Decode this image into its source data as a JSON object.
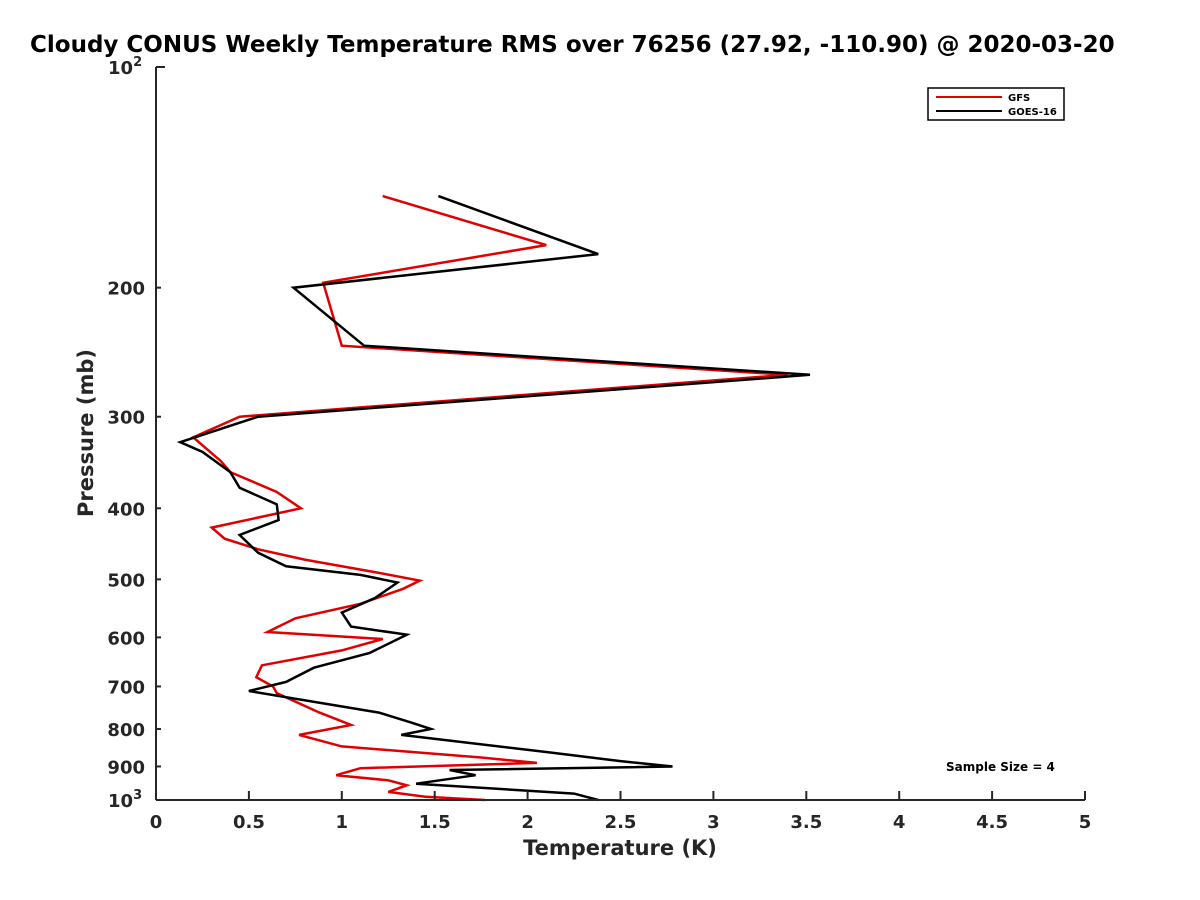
{
  "chart_data": {
    "type": "line",
    "title": "Cloudy CONUS Weekly Temperature RMS over 76256 (27.92, -110.90) @ 2020-03-20",
    "xlabel": "Temperature (K)",
    "ylabel": "Pressure (mb)",
    "xlim": [
      0,
      5
    ],
    "ylim": [
      100,
      1000
    ],
    "yscale": "log",
    "y_reversed": true,
    "xticks": [
      0,
      0.5,
      1,
      1.5,
      2,
      2.5,
      3,
      3.5,
      4,
      4.5,
      5
    ],
    "xtick_labels": [
      "0",
      "0.5",
      "1",
      "1.5",
      "2",
      "2.5",
      "3",
      "3.5",
      "4",
      "4.5",
      "5"
    ],
    "yticks": [
      100,
      200,
      300,
      400,
      500,
      600,
      700,
      800,
      900,
      1000
    ],
    "ytick_labels": [
      "",
      "200",
      "300",
      "400",
      "500",
      "600",
      "700",
      "800",
      "900",
      ""
    ],
    "ytick_exp_labels": [
      {
        "value": 100,
        "base": "10",
        "exp": "2"
      },
      {
        "value": 1000,
        "base": "10",
        "exp": "3"
      }
    ],
    "legend_position": "top-right",
    "annotation": "Sample Size = 4",
    "series": [
      {
        "name": "GFS",
        "color": "#e00000",
        "points": [
          [
            1.22,
            150
          ],
          [
            2.1,
            175
          ],
          [
            0.9,
            197
          ],
          [
            1.0,
            240
          ],
          [
            3.4,
            263
          ],
          [
            0.45,
            300
          ],
          [
            0.2,
            320
          ],
          [
            0.35,
            345
          ],
          [
            0.4,
            357
          ],
          [
            0.65,
            380
          ],
          [
            0.78,
            400
          ],
          [
            0.3,
            425
          ],
          [
            0.37,
            440
          ],
          [
            0.55,
            455
          ],
          [
            0.8,
            470
          ],
          [
            1.2,
            490
          ],
          [
            1.42,
            502
          ],
          [
            1.33,
            515
          ],
          [
            1.1,
            540
          ],
          [
            0.75,
            565
          ],
          [
            0.6,
            590
          ],
          [
            1.22,
            603
          ],
          [
            1.0,
            625
          ],
          [
            0.57,
            655
          ],
          [
            0.54,
            680
          ],
          [
            0.63,
            700
          ],
          [
            0.65,
            715
          ],
          [
            0.88,
            760
          ],
          [
            1.05,
            790
          ],
          [
            0.77,
            815
          ],
          [
            1.0,
            845
          ],
          [
            1.75,
            875
          ],
          [
            2.05,
            890
          ],
          [
            1.1,
            905
          ],
          [
            0.97,
            925
          ],
          [
            1.25,
            940
          ],
          [
            1.35,
            955
          ],
          [
            1.25,
            975
          ],
          [
            1.45,
            990
          ],
          [
            1.77,
            1000
          ]
        ]
      },
      {
        "name": "GOES-16",
        "color": "#000000",
        "points": [
          [
            1.52,
            150
          ],
          [
            2.38,
            180
          ],
          [
            0.74,
            200
          ],
          [
            1.12,
            240
          ],
          [
            3.52,
            263
          ],
          [
            0.55,
            300
          ],
          [
            0.13,
            325
          ],
          [
            0.25,
            335
          ],
          [
            0.4,
            357
          ],
          [
            0.45,
            375
          ],
          [
            0.65,
            395
          ],
          [
            0.66,
            415
          ],
          [
            0.45,
            435
          ],
          [
            0.55,
            460
          ],
          [
            0.7,
            480
          ],
          [
            1.1,
            493
          ],
          [
            1.3,
            505
          ],
          [
            1.18,
            530
          ],
          [
            1.0,
            555
          ],
          [
            1.05,
            580
          ],
          [
            1.35,
            595
          ],
          [
            1.15,
            630
          ],
          [
            0.85,
            660
          ],
          [
            0.7,
            690
          ],
          [
            0.5,
            710
          ],
          [
            1.2,
            760
          ],
          [
            1.38,
            785
          ],
          [
            1.48,
            800
          ],
          [
            1.32,
            815
          ],
          [
            2.1,
            860
          ],
          [
            2.5,
            885
          ],
          [
            2.78,
            900
          ],
          [
            1.58,
            910
          ],
          [
            1.72,
            925
          ],
          [
            1.4,
            950
          ],
          [
            2.25,
            980
          ],
          [
            2.38,
            1000
          ]
        ]
      }
    ]
  }
}
